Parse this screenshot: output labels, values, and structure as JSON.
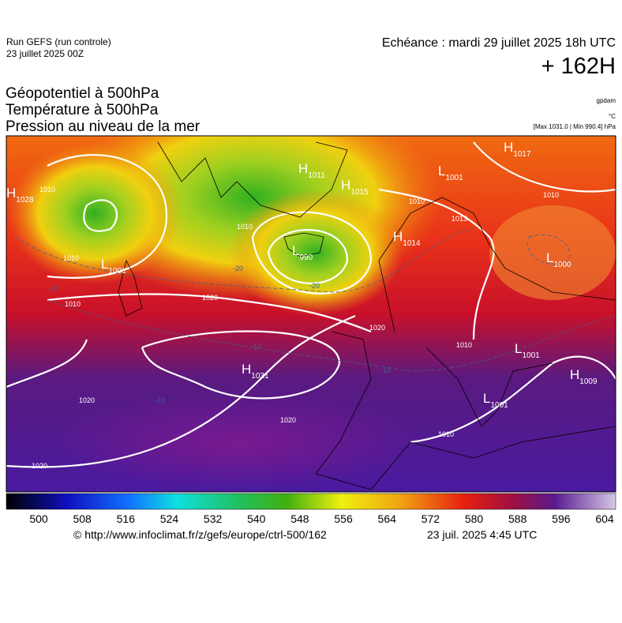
{
  "header": {
    "run": "Run GEFS (run controle)",
    "run_date": "23 juillet 2025 00Z",
    "valid": "Echéance : mardi 29 juillet 2025 18h UTC",
    "lead": "+ 162H",
    "fields": [
      "Géopotentiel à 500hPa",
      "Température à 500hPa",
      "Pression au niveau de la mer"
    ],
    "units": [
      "gpdam",
      "°C",
      "[Max 1031.0 | Min 990.4] hPa"
    ]
  },
  "centers": [
    {
      "kind": "H",
      "value": "1017"
    },
    {
      "kind": "H",
      "value": "1011"
    },
    {
      "kind": "H",
      "value": "1015"
    },
    {
      "kind": "L",
      "value": "1001"
    },
    {
      "kind": "H",
      "value": "1014"
    },
    {
      "kind": "L",
      "value": "990"
    },
    {
      "kind": "L",
      "value": "1000"
    },
    {
      "kind": "L",
      "value": "1001"
    },
    {
      "kind": "H",
      "value": "1028"
    },
    {
      "kind": "H",
      "value": "1031"
    },
    {
      "kind": "L",
      "value": "1001"
    },
    {
      "kind": "H",
      "value": "1009"
    },
    {
      "kind": "L",
      "value": "1001"
    }
  ],
  "isobar_labels": [
    "1010",
    "1010",
    "1010",
    "1020",
    "1020",
    "1010",
    "1020",
    "1020",
    "1010",
    "1020",
    "1010",
    "1010",
    "1010",
    "1013"
  ],
  "temperature_labels": [
    "-20",
    "-20",
    "-10",
    "-10",
    "-10",
    "-10"
  ],
  "colorbar": {
    "ticks": [
      "500",
      "508",
      "516",
      "524",
      "532",
      "540",
      "548",
      "556",
      "564",
      "572",
      "580",
      "588",
      "596",
      "604"
    ]
  },
  "footer": {
    "source": "© http://www.infoclimat.fr/z/gefs/europe/ctrl-500/162",
    "generated": "23 juil. 2025  4:45 UTC"
  }
}
